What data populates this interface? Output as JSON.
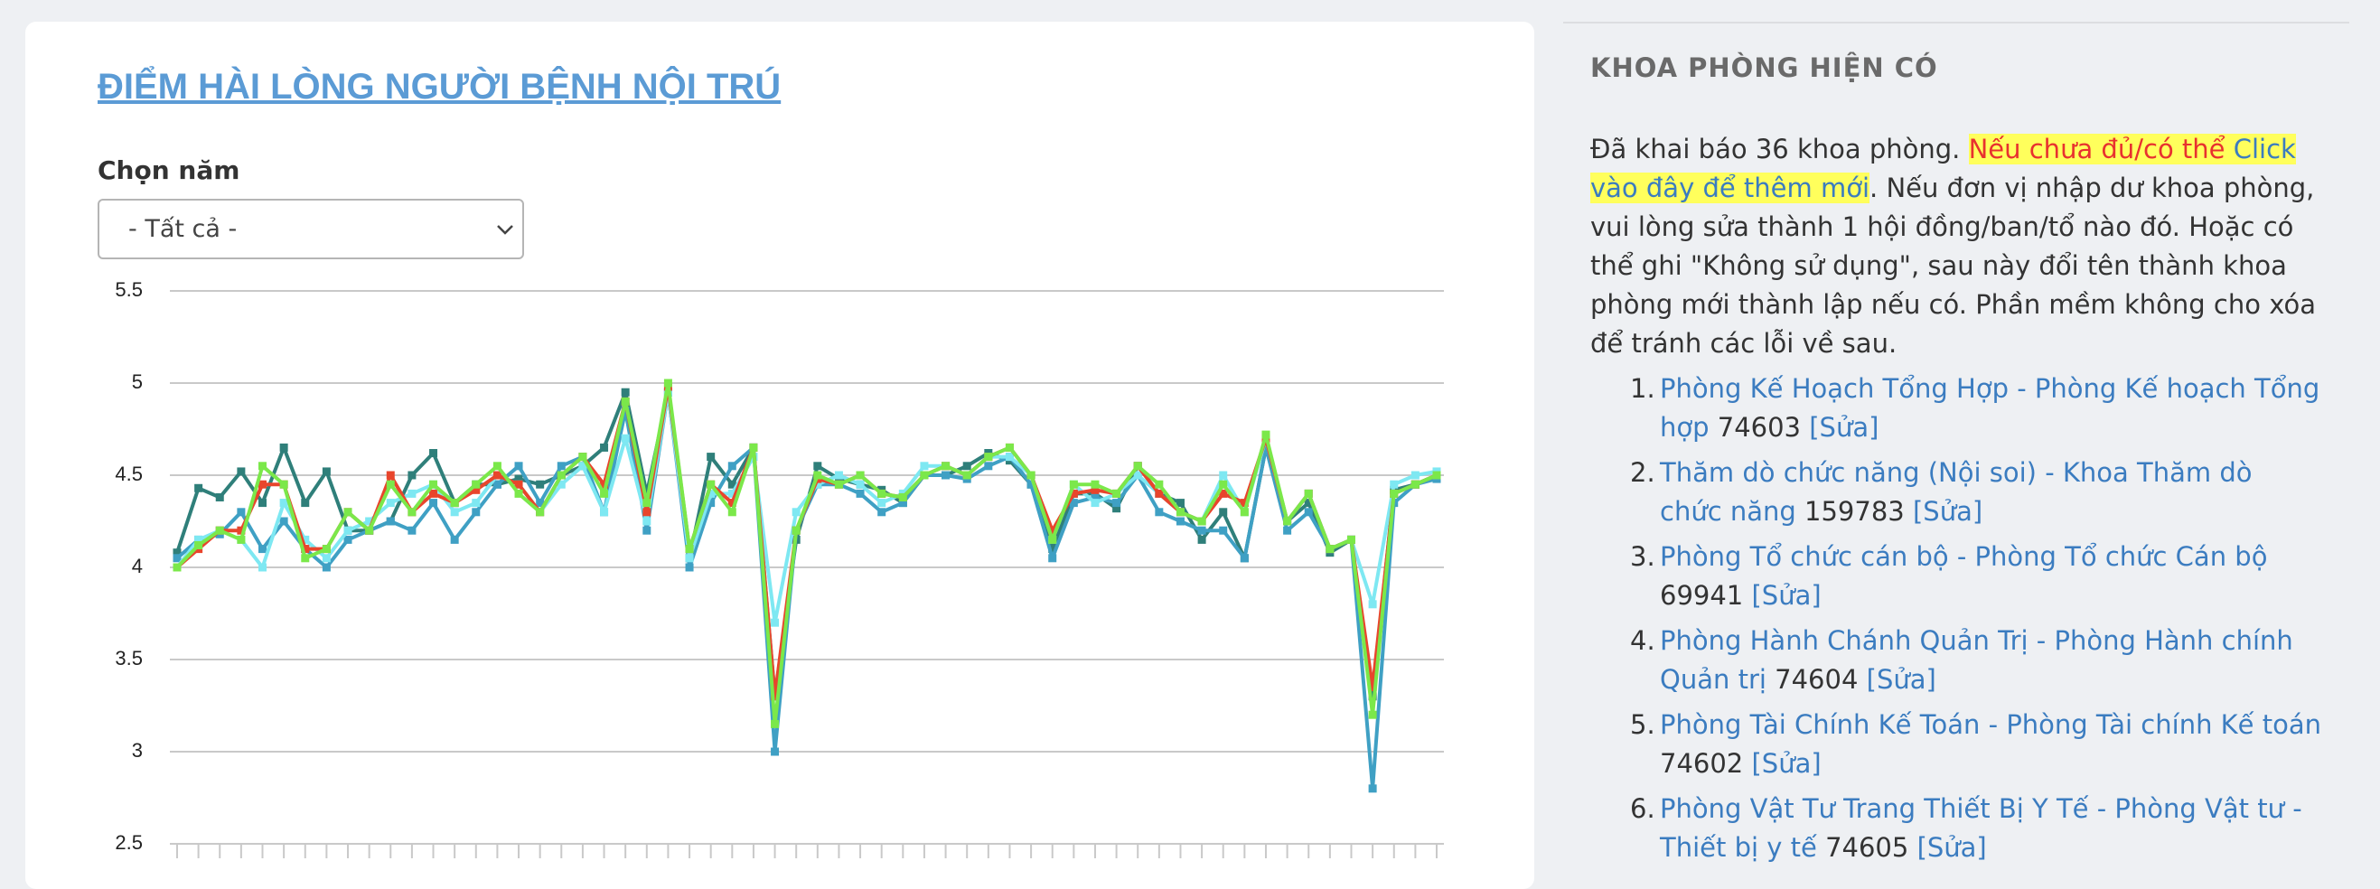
{
  "card": {
    "title": "ĐIỂM HÀI LÒNG NGƯỜI BỆNH NỘI TRÚ",
    "select_label": "Chọn năm",
    "select_value": "- Tất cả -"
  },
  "chart_data": {
    "type": "line",
    "categories": [
      null,
      null,
      null,
      null,
      null,
      null,
      null,
      null,
      null,
      null,
      null,
      null,
      null,
      null,
      null,
      null,
      null,
      null,
      null,
      null,
      null,
      null,
      null,
      null,
      null,
      null,
      null,
      null,
      null,
      null,
      null,
      null,
      null,
      null,
      null,
      null,
      null,
      null,
      null,
      null,
      null,
      null,
      null,
      null,
      null,
      null,
      null,
      null,
      null,
      null,
      null,
      null,
      null,
      null,
      null,
      null,
      null,
      null,
      null,
      null
    ],
    "ylim": [
      2.5,
      5.5
    ],
    "yticks": [
      2.5,
      3,
      3.5,
      4,
      4.5,
      5,
      5.5
    ],
    "grid": true,
    "series": [
      {
        "color": "#2f7f7a",
        "values": [
          4.08,
          4.43,
          4.38,
          4.52,
          4.35,
          4.65,
          4.35,
          4.52,
          4.2,
          4.2,
          4.25,
          4.5,
          4.62,
          4.35,
          4.45,
          4.45,
          4.48,
          4.45,
          4.5,
          4.55,
          4.65,
          4.95,
          4.4,
          4.95,
          4.05,
          4.6,
          4.45,
          4.65,
          3.3,
          4.15,
          4.55,
          4.48,
          4.45,
          4.42,
          4.35,
          4.5,
          4.5,
          4.55,
          4.62,
          4.58,
          4.45,
          4.1,
          4.4,
          4.4,
          4.32,
          4.55,
          4.4,
          4.35,
          4.15,
          4.3,
          4.05,
          4.65,
          4.25,
          4.35,
          4.08,
          4.15,
          3.3,
          4.42,
          4.45,
          4.5
        ]
      },
      {
        "color": "#3fa0c4",
        "values": [
          4.05,
          4.15,
          4.18,
          4.3,
          4.1,
          4.25,
          4.1,
          4.0,
          4.15,
          4.2,
          4.25,
          4.2,
          4.35,
          4.15,
          4.3,
          4.45,
          4.55,
          4.35,
          4.55,
          4.6,
          4.3,
          4.85,
          4.2,
          4.95,
          4.0,
          4.35,
          4.55,
          4.65,
          3.0,
          4.2,
          4.45,
          4.45,
          4.4,
          4.3,
          4.35,
          4.5,
          4.5,
          4.48,
          4.55,
          4.6,
          4.45,
          4.05,
          4.35,
          4.38,
          4.35,
          4.5,
          4.3,
          4.25,
          4.2,
          4.2,
          4.05,
          4.65,
          4.2,
          4.3,
          4.1,
          4.15,
          2.8,
          4.35,
          4.45,
          4.48
        ]
      },
      {
        "color": "#7ee8f2",
        "values": [
          4.0,
          4.15,
          4.2,
          4.15,
          4.0,
          4.35,
          4.15,
          4.05,
          4.2,
          4.25,
          4.35,
          4.4,
          4.45,
          4.3,
          4.35,
          4.5,
          4.45,
          4.3,
          4.45,
          4.55,
          4.3,
          4.7,
          4.25,
          4.95,
          4.05,
          4.4,
          4.4,
          4.6,
          3.7,
          4.3,
          4.45,
          4.5,
          4.45,
          4.35,
          4.4,
          4.55,
          4.55,
          4.5,
          4.6,
          4.6,
          4.5,
          4.15,
          4.45,
          4.35,
          4.4,
          4.5,
          4.4,
          4.3,
          4.25,
          4.5,
          4.3,
          4.7,
          4.25,
          4.4,
          4.1,
          4.15,
          3.8,
          4.45,
          4.5,
          4.52
        ]
      },
      {
        "color": "#e8452c",
        "values": [
          4.0,
          4.1,
          4.2,
          4.2,
          4.45,
          4.45,
          4.1,
          4.1,
          4.3,
          4.2,
          4.5,
          4.3,
          4.4,
          4.35,
          4.42,
          4.5,
          4.45,
          4.3,
          4.5,
          4.6,
          4.45,
          4.9,
          4.3,
          4.98,
          4.1,
          4.45,
          4.35,
          4.65,
          3.3,
          4.2,
          4.48,
          4.45,
          4.5,
          4.4,
          4.38,
          4.5,
          4.55,
          4.5,
          4.6,
          4.65,
          4.5,
          4.2,
          4.4,
          4.42,
          4.4,
          4.55,
          4.4,
          4.3,
          4.25,
          4.4,
          4.35,
          4.7,
          4.25,
          4.4,
          4.1,
          4.15,
          3.35,
          4.4,
          4.45,
          4.5
        ]
      },
      {
        "color": "#7be84a",
        "values": [
          4.0,
          4.12,
          4.2,
          4.15,
          4.55,
          4.45,
          4.05,
          4.1,
          4.3,
          4.2,
          4.45,
          4.3,
          4.45,
          4.35,
          4.45,
          4.55,
          4.4,
          4.3,
          4.5,
          4.6,
          4.4,
          4.9,
          4.35,
          5.0,
          4.1,
          4.45,
          4.3,
          4.65,
          3.15,
          4.2,
          4.5,
          4.45,
          4.5,
          4.4,
          4.38,
          4.5,
          4.55,
          4.5,
          4.6,
          4.65,
          4.5,
          4.15,
          4.45,
          4.45,
          4.4,
          4.55,
          4.45,
          4.3,
          4.25,
          4.45,
          4.3,
          4.72,
          4.25,
          4.4,
          4.1,
          4.15,
          3.2,
          4.4,
          4.45,
          4.5
        ]
      }
    ]
  },
  "sidebar": {
    "title": "KHOA PHÒNG HIỆN CÓ",
    "intro_before": "Đã khai báo 36 khoa phòng.",
    "highlight_text": "Nếu chưa đủ/có thể",
    "highlight_link": "Click vào đây để thêm mới",
    "intro_after": ". Nếu đơn vị nhập dư khoa phòng, vui lòng sửa thành 1 hội đồng/ban/tổ nào đó. Hoặc có thể ghi \"Không sử dụng\", sau này đổi tên thành khoa phòng mới thành lập nếu có. Phần mềm không cho xóa để tránh các lỗi về sau.",
    "items": [
      {
        "number": "1.",
        "name": "Phòng Kế Hoạch Tổng Hợp - Phòng Kế hoạch Tổng hợp",
        "code": "74603",
        "edit": "[Sửa]"
      },
      {
        "number": "2.",
        "name": "Thăm dò chức năng (Nội soi) - Khoa Thăm dò chức năng",
        "code": "159783",
        "edit": "[Sửa]"
      },
      {
        "number": "3.",
        "name": "Phòng Tổ chức cán bộ - Phòng Tổ chức Cán bộ",
        "code": "69941",
        "edit": "[Sửa]"
      },
      {
        "number": "4.",
        "name": "Phòng Hành Chánh Quản Trị - Phòng Hành chính Quản trị",
        "code": "74604",
        "edit": "[Sửa]"
      },
      {
        "number": "5.",
        "name": "Phòng Tài Chính Kế Toán - Phòng Tài chính Kế toán",
        "code": "74602",
        "edit": "[Sửa]"
      },
      {
        "number": "6.",
        "name": "Phòng Vật Tư Trang Thiết Bị Y Tế - Phòng Vật tư - Thiết bị y tế",
        "code": "74605",
        "edit": "[Sửa]"
      }
    ]
  }
}
